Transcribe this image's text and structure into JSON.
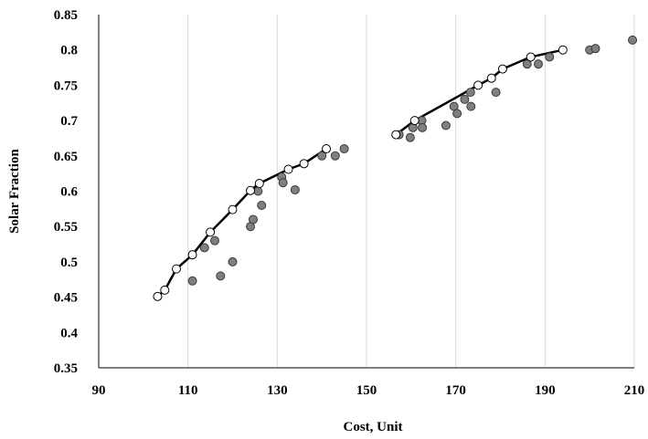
{
  "chart_data": {
    "type": "scatter",
    "xlabel": "Cost, Unit",
    "ylabel": "Solar Fraction",
    "xlim": [
      90,
      210
    ],
    "ylim": [
      0.35,
      0.85
    ],
    "x_ticks": [
      90,
      110,
      130,
      150,
      170,
      190,
      210
    ],
    "y_ticks": [
      0.35,
      0.4,
      0.45,
      0.5,
      0.55,
      0.6,
      0.65,
      0.7,
      0.75,
      0.8,
      0.85
    ],
    "x_tick_labels": [
      "90",
      "110",
      "130",
      "150",
      "170",
      "190",
      "210"
    ],
    "y_tick_labels": [
      "0.35",
      "0.4",
      "0.45",
      "0.5",
      "0.55",
      "0.6",
      "0.65",
      "0.7",
      "0.75",
      "0.8",
      "0.85"
    ],
    "grid": "vertical",
    "colors": {
      "filled_marker": "#7f7f7f",
      "open_marker": "#ffffff",
      "line": "#000000",
      "grid": "#d9d9d9"
    },
    "series": [
      {
        "style": "filled-markers",
        "points": [
          [
            111.0,
            0.473
          ],
          [
            113.7,
            0.52
          ],
          [
            116.0,
            0.53
          ],
          [
            117.3,
            0.48
          ],
          [
            120.0,
            0.5
          ],
          [
            124.0,
            0.55
          ],
          [
            124.6,
            0.56
          ],
          [
            125.7,
            0.6
          ],
          [
            126.5,
            0.58
          ],
          [
            131.0,
            0.62
          ],
          [
            131.3,
            0.612
          ],
          [
            134.0,
            0.602
          ],
          [
            140.0,
            0.65
          ],
          [
            143.0,
            0.65
          ],
          [
            145.0,
            0.66
          ],
          [
            157.3,
            0.68
          ],
          [
            159.8,
            0.676
          ],
          [
            160.4,
            0.69
          ],
          [
            162.4,
            0.7
          ],
          [
            162.5,
            0.69
          ],
          [
            167.8,
            0.693
          ],
          [
            169.6,
            0.72
          ],
          [
            170.3,
            0.71
          ],
          [
            172.0,
            0.73
          ],
          [
            173.3,
            0.74
          ],
          [
            173.4,
            0.72
          ],
          [
            179.0,
            0.74
          ],
          [
            186.0,
            0.78
          ],
          [
            188.5,
            0.78
          ],
          [
            191.0,
            0.79
          ],
          [
            200.0,
            0.8
          ],
          [
            201.3,
            0.802
          ],
          [
            209.6,
            0.814
          ]
        ]
      },
      {
        "style": "open-markers-line",
        "segments": [
          [
            [
              103.2,
              0.451
            ],
            [
              104.8,
              0.46
            ],
            [
              107.4,
              0.49
            ],
            [
              111.0,
              0.51
            ],
            [
              115.0,
              0.542
            ],
            [
              120.0,
              0.574
            ],
            [
              124.0,
              0.601
            ],
            [
              126.0,
              0.611
            ],
            [
              132.5,
              0.631
            ],
            [
              136.0,
              0.639
            ],
            [
              141.0,
              0.66
            ]
          ],
          [
            [
              156.6,
              0.68
            ],
            [
              160.8,
              0.7
            ],
            [
              175.0,
              0.75
            ],
            [
              178.0,
              0.76
            ],
            [
              180.5,
              0.773
            ],
            [
              186.8,
              0.79
            ],
            [
              194.0,
              0.8
            ]
          ]
        ]
      }
    ]
  }
}
